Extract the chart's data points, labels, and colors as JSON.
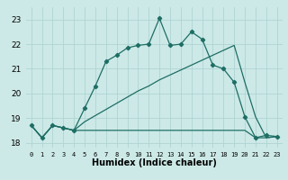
{
  "xlabel": "Humidex (Indice chaleur)",
  "bg_color": "#cce9e7",
  "grid_color": "#afd4d2",
  "line_color": "#1e6e64",
  "xlim": [
    -0.5,
    23.5
  ],
  "ylim": [
    17.8,
    23.5
  ],
  "xticks": [
    0,
    1,
    2,
    3,
    4,
    5,
    6,
    7,
    8,
    9,
    10,
    11,
    12,
    13,
    14,
    15,
    16,
    17,
    18,
    19,
    20,
    21,
    22,
    23
  ],
  "yticks": [
    18,
    19,
    20,
    21,
    22,
    23
  ],
  "line1_x": [
    0,
    1,
    2,
    3,
    4,
    5,
    6,
    7,
    8,
    9,
    10,
    11,
    12,
    13,
    14,
    15,
    16,
    17,
    18,
    19,
    20,
    21,
    22,
    23
  ],
  "line1_y": [
    18.7,
    18.2,
    18.7,
    18.6,
    18.5,
    19.4,
    20.3,
    21.3,
    21.55,
    21.85,
    21.95,
    22.0,
    23.05,
    21.95,
    22.0,
    22.5,
    22.2,
    21.15,
    21.0,
    20.45,
    19.05,
    18.2,
    18.3,
    18.25
  ],
  "line2_x": [
    0,
    1,
    2,
    3,
    4,
    5,
    6,
    7,
    8,
    9,
    10,
    11,
    12,
    13,
    14,
    15,
    16,
    17,
    18,
    19,
    20,
    21,
    22,
    23
  ],
  "line2_y": [
    18.7,
    18.2,
    18.7,
    18.6,
    18.5,
    18.85,
    19.1,
    19.35,
    19.6,
    19.85,
    20.1,
    20.3,
    20.55,
    20.75,
    20.95,
    21.15,
    21.35,
    21.55,
    21.75,
    21.95,
    20.45,
    19.05,
    18.2,
    18.25
  ],
  "line3_x": [
    0,
    1,
    2,
    3,
    4,
    5,
    6,
    7,
    8,
    9,
    10,
    11,
    12,
    13,
    14,
    15,
    16,
    17,
    18,
    19,
    20,
    21,
    22,
    23
  ],
  "line3_y": [
    18.7,
    18.2,
    18.7,
    18.6,
    18.5,
    18.5,
    18.5,
    18.5,
    18.5,
    18.5,
    18.5,
    18.5,
    18.5,
    18.5,
    18.5,
    18.5,
    18.5,
    18.5,
    18.5,
    18.5,
    18.5,
    18.2,
    18.2,
    18.25
  ]
}
